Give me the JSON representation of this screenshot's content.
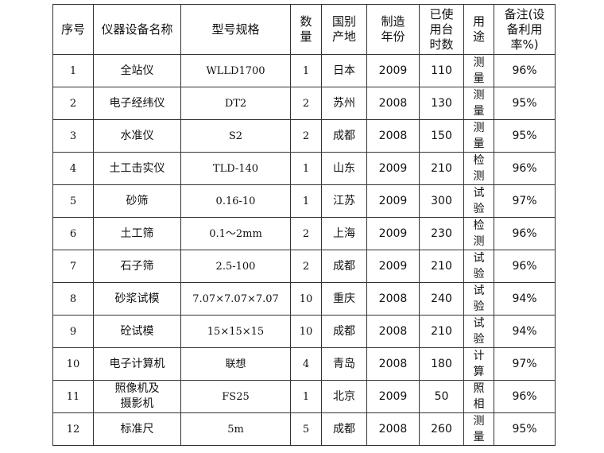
{
  "headers": [
    "序号",
    "仪器设备名称",
    "型号规格",
    "数\n量",
    "国别\n产地",
    "制造\n年份",
    "已使\n用台\n时数",
    "用\n途",
    "备注(设\n备利用\n率%)"
  ],
  "rows": [
    [
      "1",
      "全站仪",
      "WLLD1700",
      "1",
      "日本",
      "2009",
      "110",
      "测\n量",
      "96%"
    ],
    [
      "2",
      "电子经纬仪",
      "DT2",
      "2",
      "苏州",
      "2008",
      "130",
      "测\n量",
      "95%"
    ],
    [
      "3",
      "水准仪",
      "S2",
      "2",
      "成都",
      "2008",
      "150",
      "测\n量",
      "95%"
    ],
    [
      "4",
      "土工击实仪",
      "TLD-140",
      "1",
      "山东",
      "2009",
      "210",
      "检\n测",
      "96%"
    ],
    [
      "5",
      "砂筛",
      "0.16-10",
      "1",
      "江苏",
      "2009",
      "300",
      "试\n验",
      "97%"
    ],
    [
      "6",
      "土工筛",
      "0.1～2mm",
      "2",
      "上海",
      "2009",
      "230",
      "检\n测",
      "96%"
    ],
    [
      "7",
      "石子筛",
      "2.5-100",
      "2",
      "成都",
      "2009",
      "210",
      "试\n验",
      "96%"
    ],
    [
      "8",
      "砂浆试模",
      "7.07×7.07×7.07",
      "10",
      "重庆",
      "2008",
      "240",
      "试\n验",
      "94%"
    ],
    [
      "9",
      "砼试模",
      "15×15×15",
      "10",
      "成都",
      "2008",
      "210",
      "试\n验",
      "94%"
    ],
    [
      "10",
      "电子计算机",
      "联想",
      "4",
      "青岛",
      "2008",
      "180",
      "计\n算",
      "97%"
    ],
    [
      "11",
      "照像机及\n摄影机",
      "FS25",
      "1",
      "北京",
      "2009",
      "50",
      "照\n相",
      "96%"
    ],
    [
      "12",
      "标准尺",
      "5m",
      "5",
      "成都",
      "2008",
      "260",
      "测\n量",
      "95%"
    ]
  ]
}
